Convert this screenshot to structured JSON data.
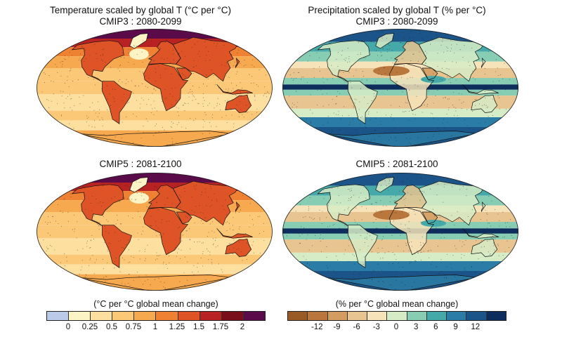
{
  "panels": {
    "temp": {
      "title": "Temperature scaled by global T (°C per °C)",
      "sub_top": "CMIP3 : 2080-2099",
      "sub_bottom": "CMIP5 : 2081-2100"
    },
    "precip": {
      "title": "Precipitation scaled by global T (% per °C)",
      "sub_top": "CMIP3 : 2080-2099",
      "sub_bottom": "CMIP5 : 2081-2100"
    }
  },
  "colorbars": {
    "temp": {
      "label": "(°C per °C global mean change)",
      "colors": [
        "#b9cbe8",
        "#fdf4c6",
        "#fde0a0",
        "#fbc878",
        "#f6a94e",
        "#ef8232",
        "#de5427",
        "#b82222",
        "#7a0f1c",
        "#5b0a4a"
      ],
      "ticks": [
        "0",
        "0.25",
        "0.5",
        "0.75",
        "1",
        "1.25",
        "1.5",
        "1.75",
        "2"
      ]
    },
    "precip": {
      "label": "(% per °C global mean change)",
      "colors": [
        "#9a5a26",
        "#b9773d",
        "#d39d62",
        "#e8c490",
        "#f6e3ba",
        "#d6ecc6",
        "#86cdb4",
        "#45a9a9",
        "#2b7ca6",
        "#1b5489",
        "#0d2e5c"
      ],
      "ticks": [
        "-12",
        "-9",
        "-6",
        "-3",
        "0",
        "3",
        "6",
        "9",
        "12"
      ]
    }
  }
}
